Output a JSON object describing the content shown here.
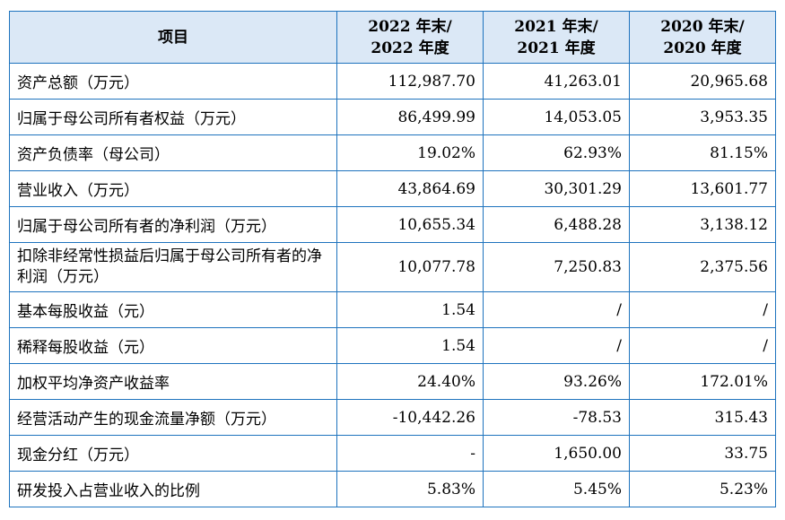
{
  "table": {
    "headers": {
      "item": "项目",
      "col1": [
        "2022 年末/",
        "2022 年度"
      ],
      "col2": [
        "2021 年末/",
        "2021 年度"
      ],
      "col3": [
        "2020 年末/",
        "2020 年度"
      ]
    },
    "rows": [
      {
        "label": "资产总额（万元）",
        "v2022": "112,987.70",
        "v2021": "41,263.01",
        "v2020": "20,965.68"
      },
      {
        "label": "归属于母公司所有者权益（万元）",
        "v2022": "86,499.99",
        "v2021": "14,053.05",
        "v2020": "3,953.35"
      },
      {
        "label": "资产负债率（母公司）",
        "v2022": "19.02%",
        "v2021": "62.93%",
        "v2020": "81.15%"
      },
      {
        "label": "营业收入（万元）",
        "v2022": "43,864.69",
        "v2021": "30,301.29",
        "v2020": "13,601.77"
      },
      {
        "label": "归属于母公司所有者的净利润（万元）",
        "v2022": "10,655.34",
        "v2021": "6,488.28",
        "v2020": "3,138.12"
      },
      {
        "label": "扣除非经常性损益后归属于母公司所有者的净利润（万元）",
        "v2022": "10,077.78",
        "v2021": "7,250.83",
        "v2020": "2,375.56"
      },
      {
        "label": "基本每股收益（元）",
        "v2022": "1.54",
        "v2021": "/",
        "v2020": "/"
      },
      {
        "label": "稀释每股收益（元）",
        "v2022": "1.54",
        "v2021": "/",
        "v2020": "/"
      },
      {
        "label": "加权平均净资产收益率",
        "v2022": "24.40%",
        "v2021": "93.26%",
        "v2020": "172.01%"
      },
      {
        "label": "经营活动产生的现金流量净额（万元）",
        "v2022": "-10,442.26",
        "v2021": "-78.53",
        "v2020": "315.43"
      },
      {
        "label": "现金分红（万元）",
        "v2022": "-",
        "v2021": "1,650.00",
        "v2020": "33.75"
      },
      {
        "label": "研发投入占营业收入的比例",
        "v2022": "5.83%",
        "v2021": "5.45%",
        "v2020": "5.23%"
      }
    ]
  },
  "colors": {
    "border": "#1e73be",
    "header_bg": "#dbe8f6"
  }
}
